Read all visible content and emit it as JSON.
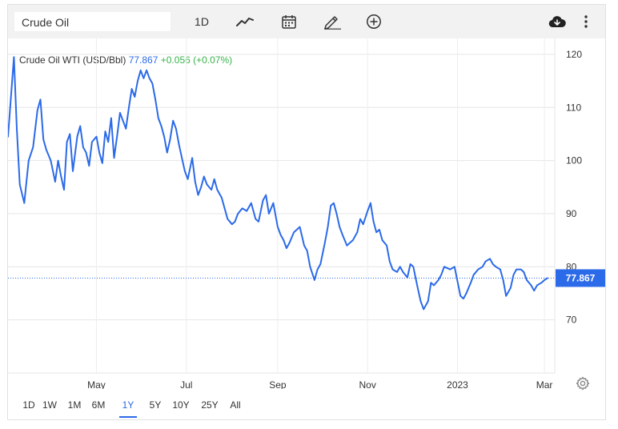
{
  "toolbar": {
    "symbol": "Crude Oil",
    "interval_label": "1D",
    "icons": [
      "line-chart-icon",
      "calendar-icon",
      "pencil-icon",
      "add-circle-icon",
      "cloud-download-icon",
      "more-vertical-icon"
    ]
  },
  "legend": {
    "name": "Crude Oil WTI (USD/Bbl)",
    "price": "77.867",
    "change": "+0.056 (+0.07%)"
  },
  "ranges": {
    "items": [
      "1D",
      "1W",
      "1M",
      "6M",
      "1Y",
      "5Y",
      "10Y",
      "25Y",
      "All"
    ],
    "active": "1Y"
  },
  "colors": {
    "line": "#2b6ae8",
    "price_label_bg": "#2b6ae8",
    "change_positive": "#38b24a",
    "toolbar_bg": "#f2f2f2"
  },
  "chart_data": {
    "type": "line",
    "title": "",
    "xlabel": "",
    "ylabel": "",
    "ylim": [
      60,
      123
    ],
    "y_ticks": [
      70,
      80,
      90,
      100,
      110,
      120
    ],
    "x_tick_labels": [
      {
        "label": "May",
        "x": "2022-05-01"
      },
      {
        "label": "Jul",
        "x": "2022-07-01"
      },
      {
        "label": "Sep",
        "x": "2022-09-01"
      },
      {
        "label": "Nov",
        "x": "2022-11-01"
      },
      {
        "label": "2023",
        "x": "2023-01-01"
      },
      {
        "label": "Mar",
        "x": "2023-03-01"
      }
    ],
    "xlim": [
      "2022-03-02",
      "2023-03-08"
    ],
    "last_value_label": "77.867",
    "grid": true,
    "series": [
      {
        "x": [
          "2022-03-02",
          "2022-03-04",
          "2022-03-06",
          "2022-03-08",
          "2022-03-10",
          "2022-03-13",
          "2022-03-16",
          "2022-03-19",
          "2022-03-22",
          "2022-03-24",
          "2022-03-26",
          "2022-03-28",
          "2022-03-31",
          "2022-04-03",
          "2022-04-05",
          "2022-04-07",
          "2022-04-09",
          "2022-04-11",
          "2022-04-13",
          "2022-04-15",
          "2022-04-18",
          "2022-04-20",
          "2022-04-22",
          "2022-04-24",
          "2022-04-26",
          "2022-04-28",
          "2022-05-01",
          "2022-05-03",
          "2022-05-05",
          "2022-05-07",
          "2022-05-09",
          "2022-05-11",
          "2022-05-13",
          "2022-05-15",
          "2022-05-17",
          "2022-05-19",
          "2022-05-21",
          "2022-05-23",
          "2022-05-25",
          "2022-05-27",
          "2022-05-29",
          "2022-05-31",
          "2022-06-02",
          "2022-06-04",
          "2022-06-06",
          "2022-06-08",
          "2022-06-10",
          "2022-06-12",
          "2022-06-14",
          "2022-06-16",
          "2022-06-18",
          "2022-06-20",
          "2022-06-22",
          "2022-06-24",
          "2022-06-26",
          "2022-06-28",
          "2022-06-30",
          "2022-07-02",
          "2022-07-05",
          "2022-07-07",
          "2022-07-09",
          "2022-07-11",
          "2022-07-13",
          "2022-07-15",
          "2022-07-18",
          "2022-07-20",
          "2022-07-22",
          "2022-07-25",
          "2022-07-27",
          "2022-07-29",
          "2022-08-01",
          "2022-08-03",
          "2022-08-05",
          "2022-08-08",
          "2022-08-11",
          "2022-08-14",
          "2022-08-17",
          "2022-08-19",
          "2022-08-22",
          "2022-08-24",
          "2022-08-26",
          "2022-08-29",
          "2022-09-01",
          "2022-09-03",
          "2022-09-05",
          "2022-09-07",
          "2022-09-09",
          "2022-09-12",
          "2022-09-14",
          "2022-09-16",
          "2022-09-19",
          "2022-09-21",
          "2022-09-23",
          "2022-09-26",
          "2022-09-28",
          "2022-09-30",
          "2022-10-03",
          "2022-10-05",
          "2022-10-07",
          "2022-10-09",
          "2022-10-11",
          "2022-10-13",
          "2022-10-15",
          "2022-10-18",
          "2022-10-20",
          "2022-10-22",
          "2022-10-25",
          "2022-10-27",
          "2022-10-29",
          "2022-11-01",
          "2022-11-03",
          "2022-11-05",
          "2022-11-07",
          "2022-11-09",
          "2022-11-11",
          "2022-11-14",
          "2022-11-16",
          "2022-11-18",
          "2022-11-21",
          "2022-11-23",
          "2022-11-25",
          "2022-11-28",
          "2022-11-30",
          "2022-12-02",
          "2022-12-05",
          "2022-12-07",
          "2022-12-09",
          "2022-12-12",
          "2022-12-14",
          "2022-12-16",
          "2022-12-19",
          "2022-12-21",
          "2022-12-23",
          "2022-12-27",
          "2022-12-30",
          "2023-01-03",
          "2023-01-05",
          "2023-01-07",
          "2023-01-10",
          "2023-01-12",
          "2023-01-15",
          "2023-01-18",
          "2023-01-20",
          "2023-01-23",
          "2023-01-25",
          "2023-01-27",
          "2023-01-30",
          "2023-02-01",
          "2023-02-03",
          "2023-02-06",
          "2023-02-08",
          "2023-02-10",
          "2023-02-13",
          "2023-02-15",
          "2023-02-17",
          "2023-02-20",
          "2023-02-22",
          "2023-02-24",
          "2023-02-27",
          "2023-03-01",
          "2023-03-03"
        ],
        "y": [
          104.5,
          112.0,
          119.5,
          106.0,
          95.5,
          92.0,
          100.0,
          102.5,
          109.5,
          111.5,
          104.0,
          102.0,
          100.0,
          96.0,
          100.0,
          97.0,
          94.5,
          103.5,
          105.0,
          98.0,
          104.5,
          106.5,
          102.5,
          101.5,
          99.0,
          103.5,
          104.5,
          101.5,
          99.5,
          105.5,
          103.5,
          108.0,
          100.5,
          104.5,
          109.0,
          107.5,
          106.0,
          110.0,
          113.5,
          112.0,
          115.0,
          117.0,
          115.5,
          117.0,
          115.5,
          114.5,
          111.5,
          108.0,
          106.5,
          104.5,
          101.5,
          104.0,
          107.5,
          106.0,
          103.0,
          100.5,
          98.0,
          96.5,
          100.5,
          96.0,
          93.5,
          95.0,
          97.0,
          95.5,
          94.5,
          96.5,
          94.5,
          93.0,
          91.0,
          89.0,
          88.0,
          88.5,
          90.0,
          91.0,
          90.5,
          92.0,
          89.0,
          88.5,
          92.5,
          93.5,
          90.0,
          92.0,
          87.5,
          86.0,
          85.0,
          83.5,
          84.5,
          86.5,
          87.0,
          87.5,
          84.0,
          83.0,
          80.0,
          77.5,
          79.5,
          80.5,
          84.5,
          87.5,
          91.5,
          92.0,
          90.0,
          87.5,
          86.0,
          84.0,
          84.5,
          85.0,
          86.5,
          89.0,
          88.0,
          90.5,
          92.0,
          88.5,
          86.5,
          87.0,
          85.0,
          84.0,
          81.0,
          79.5,
          79.0,
          80.0,
          79.0,
          78.0,
          80.5,
          80.0,
          76.0,
          73.5,
          72.0,
          73.5,
          77.0,
          76.5,
          77.5,
          78.5,
          80.0,
          79.5,
          80.0,
          74.5,
          74.0,
          75.0,
          77.0,
          78.5,
          79.5,
          80.0,
          81.0,
          81.5,
          80.5,
          80.0,
          79.5,
          77.5,
          74.5,
          76.0,
          78.5,
          79.5,
          79.5,
          79.0,
          77.5,
          76.5,
          75.5,
          76.5,
          77.0,
          77.5,
          77.867
        ]
      }
    ]
  }
}
